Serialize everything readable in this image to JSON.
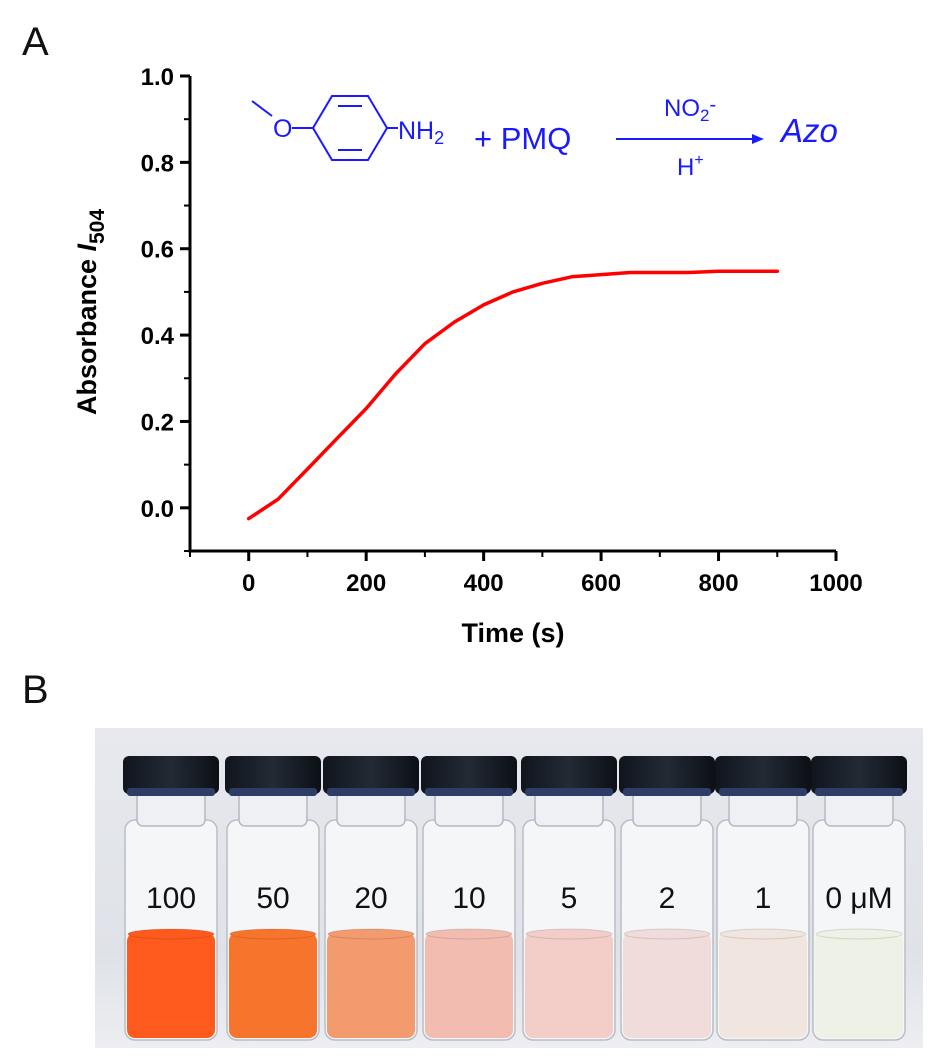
{
  "panel_a": {
    "label": "A",
    "scheme": {
      "amine_group": "NH",
      "amine_sub": "2",
      "plus_reagent": "+ PMQ",
      "above_arrow_main": "NO",
      "above_arrow_sub": "2",
      "above_arrow_sup": "-",
      "below_arrow_main": "H",
      "below_arrow_sup": "+",
      "product": "Azo",
      "color": "#1a1aff"
    }
  },
  "chart_data": {
    "type": "line",
    "xlabel": "Time (s)",
    "ylabel_main": "Absorbance ",
    "ylabel_italic": "I",
    "ylabel_sub": "504",
    "xlim": [
      -100,
      1000
    ],
    "ylim": [
      -0.1,
      1.0
    ],
    "x_ticks": [
      0,
      200,
      400,
      600,
      800,
      1000
    ],
    "x_tick_labels": [
      "0",
      "200",
      "400",
      "600",
      "800",
      "1000"
    ],
    "y_ticks": [
      0.0,
      0.2,
      0.4,
      0.6,
      0.8,
      1.0
    ],
    "y_tick_labels": [
      "0.0",
      "0.2",
      "0.4",
      "0.6",
      "0.8",
      "1.0"
    ],
    "series": [
      {
        "color": "#ff0000",
        "x": [
          0,
          50,
          100,
          150,
          200,
          250,
          300,
          350,
          400,
          450,
          500,
          550,
          600,
          650,
          700,
          750,
          800,
          850,
          900
        ],
        "y": [
          -0.025,
          0.02,
          0.09,
          0.16,
          0.23,
          0.31,
          0.38,
          0.43,
          0.47,
          0.5,
          0.52,
          0.535,
          0.54,
          0.545,
          0.545,
          0.545,
          0.548,
          0.548,
          0.548
        ]
      }
    ],
    "grid": false,
    "legend": "none"
  },
  "panel_b": {
    "label": "B",
    "vial_labels": [
      "100",
      "50",
      "20",
      "10",
      "5",
      "2",
      "1",
      "0 μM"
    ],
    "liquid_colors": [
      "#ff5a1e",
      "#f7742c",
      "#f39a6e",
      "#f2bcb0",
      "#f3cdc8",
      "#f0dcdb",
      "#f1e5df",
      "#eef1e6"
    ]
  }
}
